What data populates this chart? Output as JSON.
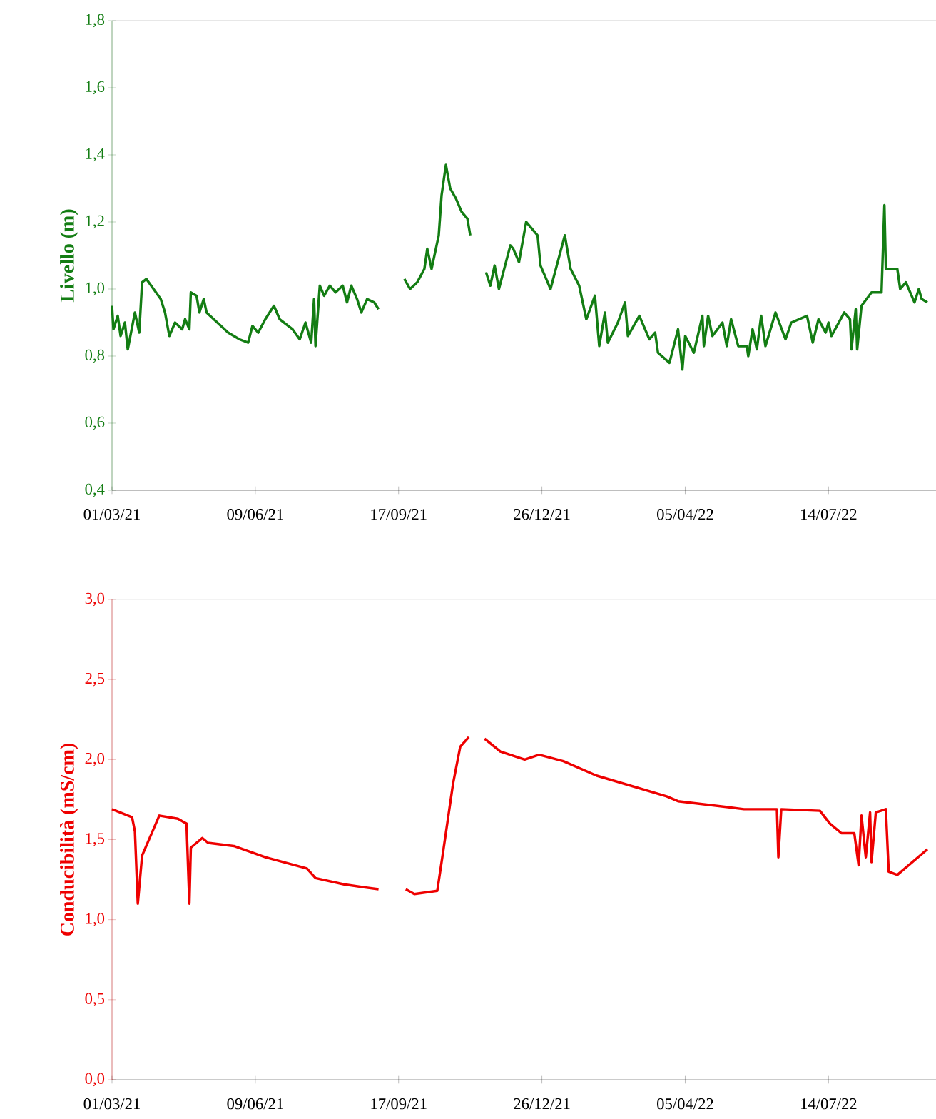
{
  "chart_data": [
    {
      "type": "line",
      "ylabel": "Livello (m)",
      "color": "#137d13",
      "line_style": "solid",
      "xlim": [
        "2021-03-01",
        "2022-09-27"
      ],
      "xticks": [
        {
          "value": "2021-03-01",
          "label": "01/03/21"
        },
        {
          "value": "2021-06-09",
          "label": "09/06/21"
        },
        {
          "value": "2021-09-17",
          "label": "17/09/21"
        },
        {
          "value": "2021-12-26",
          "label": "26/12/21"
        },
        {
          "value": "2022-04-05",
          "label": "05/04/22"
        },
        {
          "value": "2022-07-14",
          "label": "14/07/22"
        }
      ],
      "ylim": [
        0.4,
        1.8
      ],
      "yticks": [
        {
          "value": 0.4,
          "label": "0,4"
        },
        {
          "value": 0.6,
          "label": "0,6"
        },
        {
          "value": 0.8,
          "label": "0,8"
        },
        {
          "value": 1.0,
          "label": "1,0"
        },
        {
          "value": 1.2,
          "label": "1,2"
        },
        {
          "value": 1.4,
          "label": "1,4"
        },
        {
          "value": 1.6,
          "label": "1,6"
        },
        {
          "value": 1.8,
          "label": "1,8"
        }
      ],
      "x": [
        "2021-03-01",
        "2021-03-02",
        "2021-03-05",
        "2021-03-07",
        "2021-03-10",
        "2021-03-12",
        "2021-03-17",
        "2021-03-20",
        "2021-03-22",
        "2021-03-25",
        "2021-03-30",
        "2021-04-04",
        "2021-04-07",
        "2021-04-10",
        "2021-04-14",
        "2021-04-19",
        "2021-04-21",
        "2021-04-24",
        "2021-04-25",
        "2021-04-29",
        "2021-05-01",
        "2021-05-04",
        "2021-05-06",
        "2021-05-11",
        "2021-05-21",
        "2021-05-29",
        "2021-06-04",
        "2021-06-07",
        "2021-06-11",
        "2021-06-16",
        "2021-06-22",
        "2021-06-26",
        "2021-07-05",
        "2021-07-10",
        "2021-07-14",
        "2021-07-18",
        "2021-07-20",
        "2021-07-21",
        "2021-07-24",
        "2021-07-27",
        "2021-07-31",
        "2021-08-04",
        "2021-08-09",
        "2021-08-12",
        "2021-08-15",
        "2021-08-19",
        "2021-08-22",
        "2021-08-26",
        "2021-08-31",
        "2021-09-03",
        "2021-09-20",
        "2021-09-21",
        "2021-09-25",
        "2021-09-30",
        "2021-10-05",
        "2021-10-07",
        "2021-10-10",
        "2021-10-15",
        "2021-10-17",
        "2021-10-20",
        "2021-10-23",
        "2021-10-27",
        "2021-10-31",
        "2021-11-04",
        "2021-11-06",
        "2021-11-10",
        "2021-11-17",
        "2021-11-20",
        "2021-11-23",
        "2021-11-26",
        "2021-12-04",
        "2021-12-06",
        "2021-12-10",
        "2021-12-15",
        "2021-12-23",
        "2021-12-25",
        "2022-01-01",
        "2022-01-06",
        "2022-01-11",
        "2022-01-15",
        "2022-01-21",
        "2022-01-26",
        "2022-02-01",
        "2022-02-04",
        "2022-02-08",
        "2022-02-10",
        "2022-02-17",
        "2022-02-22",
        "2022-02-24",
        "2022-03-04",
        "2022-03-11",
        "2022-03-15",
        "2022-03-17",
        "2022-03-25",
        "2022-03-31",
        "2022-04-03",
        "2022-04-05",
        "2022-04-11",
        "2022-04-17",
        "2022-04-18",
        "2022-04-21",
        "2022-04-24",
        "2022-05-01",
        "2022-05-04",
        "2022-05-07",
        "2022-05-12",
        "2022-05-18",
        "2022-05-19",
        "2022-05-22",
        "2022-05-25",
        "2022-05-28",
        "2022-05-31",
        "2022-06-07",
        "2022-06-14",
        "2022-06-18",
        "2022-06-29",
        "2022-07-03",
        "2022-07-07",
        "2022-07-12",
        "2022-07-14",
        "2022-07-16",
        "2022-07-25",
        "2022-07-29",
        "2022-07-30",
        "2022-08-02",
        "2022-08-03",
        "2022-08-06",
        "2022-08-13",
        "2022-08-20",
        "2022-08-22",
        "2022-08-23",
        "2022-08-31",
        "2022-09-02",
        "2022-09-06",
        "2022-09-12",
        "2022-09-15",
        "2022-09-17",
        "2022-09-21"
      ],
      "values": [
        0.95,
        0.88,
        0.92,
        0.86,
        0.9,
        0.82,
        0.93,
        0.87,
        1.02,
        1.03,
        1.0,
        0.97,
        0.93,
        0.86,
        0.9,
        0.88,
        0.91,
        0.88,
        0.99,
        0.98,
        0.93,
        0.97,
        0.93,
        0.91,
        0.87,
        0.85,
        0.84,
        0.89,
        0.87,
        0.91,
        0.95,
        0.91,
        0.88,
        0.85,
        0.9,
        0.84,
        0.97,
        0.83,
        1.01,
        0.98,
        1.01,
        0.99,
        1.01,
        0.96,
        1.01,
        0.97,
        0.93,
        0.97,
        0.96,
        0.94,
        null,
        1.03,
        1.0,
        1.02,
        1.06,
        1.12,
        1.06,
        1.16,
        1.28,
        1.37,
        1.3,
        1.27,
        1.23,
        1.21,
        1.16,
        null,
        1.05,
        1.01,
        1.07,
        1.0,
        1.13,
        1.12,
        1.08,
        1.2,
        1.16,
        1.07,
        1.0,
        1.08,
        1.16,
        1.06,
        1.01,
        0.91,
        0.98,
        0.83,
        0.93,
        0.84,
        0.9,
        0.96,
        0.86,
        0.92,
        0.85,
        0.87,
        0.81,
        0.78,
        0.88,
        0.76,
        0.86,
        0.81,
        0.92,
        0.83,
        0.92,
        0.86,
        0.9,
        0.83,
        0.91,
        0.83,
        0.83,
        0.8,
        0.88,
        0.82,
        0.92,
        0.83,
        0.93,
        0.85,
        0.9,
        0.92,
        0.84,
        0.91,
        0.87,
        0.9,
        0.86,
        0.93,
        0.91,
        0.82,
        0.94,
        0.82,
        0.95,
        0.99,
        0.99,
        1.25,
        1.06,
        1.06,
        1.0,
        1.02,
        0.96,
        1.0,
        0.97,
        0.96
      ]
    },
    {
      "type": "line",
      "ylabel": "Conducibilità (mS/cm)",
      "color": "#ee0000",
      "line_style": "solid",
      "xlim": [
        "2021-03-01",
        "2022-09-27"
      ],
      "xticks": [
        {
          "value": "2021-03-01",
          "label": "01/03/21"
        },
        {
          "value": "2021-06-09",
          "label": "09/06/21"
        },
        {
          "value": "2021-09-17",
          "label": "17/09/21"
        },
        {
          "value": "2021-12-26",
          "label": "26/12/21"
        },
        {
          "value": "2022-04-05",
          "label": "05/04/22"
        },
        {
          "value": "2022-07-14",
          "label": "14/07/22"
        }
      ],
      "ylim": [
        0.0,
        3.0
      ],
      "yticks": [
        {
          "value": 0.0,
          "label": "0,0"
        },
        {
          "value": 0.5,
          "label": "0,5"
        },
        {
          "value": 1.0,
          "label": "1,0"
        },
        {
          "value": 1.5,
          "label": "1,5"
        },
        {
          "value": 2.0,
          "label": "2,0"
        },
        {
          "value": 2.5,
          "label": "2,5"
        },
        {
          "value": 3.0,
          "label": "3,0"
        }
      ],
      "x": [
        "2021-03-01",
        "2021-03-15",
        "2021-03-17",
        "2021-03-19",
        "2021-03-22",
        "2021-04-03",
        "2021-04-16",
        "2021-04-22",
        "2021-04-24",
        "2021-04-25",
        "2021-05-03",
        "2021-05-07",
        "2021-05-25",
        "2021-06-16",
        "2021-07-15",
        "2021-07-21",
        "2021-08-10",
        "2021-09-03",
        "2021-09-20",
        "2021-09-22",
        "2021-09-28",
        "2021-10-14",
        "2021-10-18",
        "2021-10-25",
        "2021-10-30",
        "2021-11-05",
        "2021-11-10",
        "2021-11-16",
        "2021-11-27",
        "2021-12-14",
        "2021-12-24",
        "2022-01-10",
        "2022-02-02",
        "2022-03-23",
        "2022-03-31",
        "2022-05-16",
        "2022-06-08",
        "2022-06-09",
        "2022-06-11",
        "2022-07-08",
        "2022-07-15",
        "2022-07-23",
        "2022-08-01",
        "2022-08-04",
        "2022-08-06",
        "2022-08-09",
        "2022-08-12",
        "2022-08-13",
        "2022-08-16",
        "2022-08-23",
        "2022-08-25",
        "2022-08-31",
        "2022-09-21"
      ],
      "values": [
        1.69,
        1.64,
        1.55,
        1.1,
        1.4,
        1.65,
        1.63,
        1.6,
        1.1,
        1.45,
        1.51,
        1.48,
        1.46,
        1.39,
        1.32,
        1.26,
        1.22,
        1.19,
        null,
        1.19,
        1.16,
        1.18,
        1.42,
        1.85,
        2.08,
        2.14,
        null,
        2.13,
        2.05,
        2.0,
        2.03,
        1.99,
        1.9,
        1.77,
        1.74,
        1.69,
        1.69,
        1.39,
        1.69,
        1.68,
        1.6,
        1.54,
        1.54,
        1.34,
        1.65,
        1.39,
        1.67,
        1.36,
        1.67,
        1.69,
        1.3,
        1.28,
        1.44
      ]
    }
  ]
}
